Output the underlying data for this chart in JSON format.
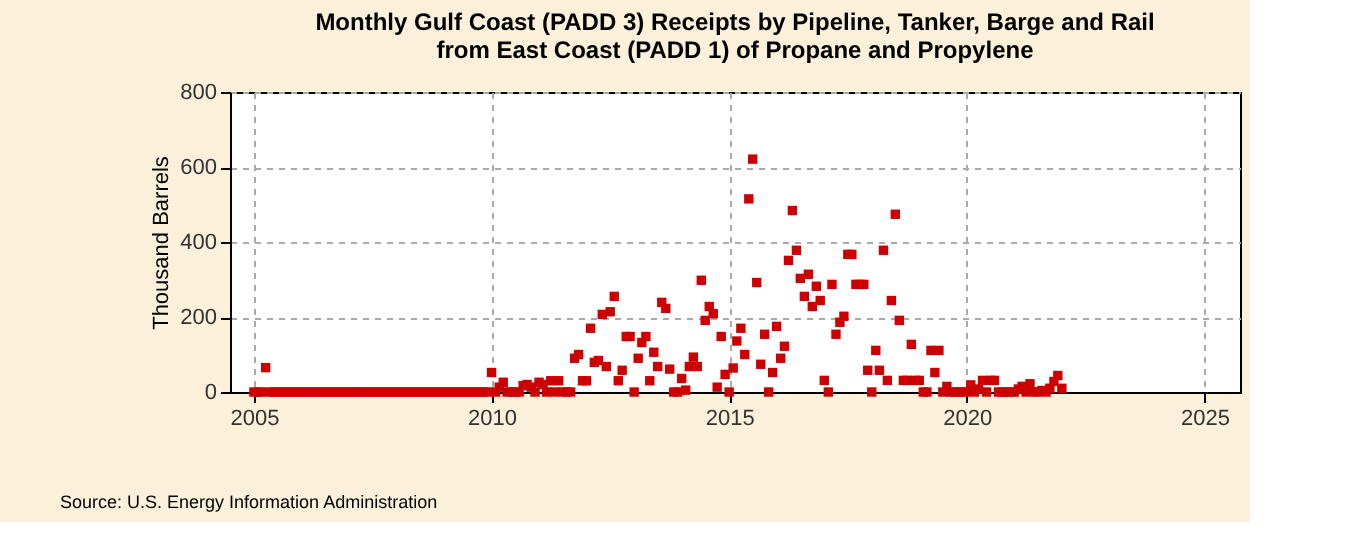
{
  "chart_data": {
    "type": "scatter",
    "title": "Monthly Gulf Coast (PADD 3) Receipts by Pipeline, Tanker, Barge and Rail from East Coast (PADD 1) of Propane and Propylene",
    "ylabel": "Thousand Barrels",
    "annotations": [
      "Source: U.S. Energy Information Administration"
    ],
    "x": [
      "2005-01",
      "2005-02",
      "2005-03",
      "2005-04",
      "2005-05",
      "2005-06",
      "2005-07",
      "2005-08",
      "2005-09",
      "2005-10",
      "2005-11",
      "2005-12",
      "2006-01",
      "2006-02",
      "2006-03",
      "2006-04",
      "2006-05",
      "2006-06",
      "2006-07",
      "2006-08",
      "2006-09",
      "2006-10",
      "2006-11",
      "2006-12",
      "2007-01",
      "2007-02",
      "2007-03",
      "2007-04",
      "2007-05",
      "2007-06",
      "2007-07",
      "2007-08",
      "2007-09",
      "2007-10",
      "2007-11",
      "2007-12",
      "2008-01",
      "2008-02",
      "2008-03",
      "2008-04",
      "2008-05",
      "2008-06",
      "2008-07",
      "2008-08",
      "2008-09",
      "2008-10",
      "2008-11",
      "2008-12",
      "2009-01",
      "2009-02",
      "2009-03",
      "2009-04",
      "2009-05",
      "2009-06",
      "2009-07",
      "2009-08",
      "2009-09",
      "2009-10",
      "2009-11",
      "2009-12",
      "2010-01",
      "2010-02",
      "2010-03",
      "2010-04",
      "2010-05",
      "2010-06",
      "2010-07",
      "2010-08",
      "2010-09",
      "2010-10",
      "2010-11",
      "2010-12",
      "2011-01",
      "2011-02",
      "2011-03",
      "2011-04",
      "2011-05",
      "2011-06",
      "2011-07",
      "2011-08",
      "2011-09",
      "2011-10",
      "2011-11",
      "2011-12",
      "2012-01",
      "2012-02",
      "2012-03",
      "2012-04",
      "2012-05",
      "2012-06",
      "2012-07",
      "2012-08",
      "2012-09",
      "2012-10",
      "2012-11",
      "2012-12",
      "2013-01",
      "2013-02",
      "2013-03",
      "2013-04",
      "2013-05",
      "2013-06",
      "2013-07",
      "2013-08",
      "2013-09",
      "2013-10",
      "2013-11",
      "2013-12",
      "2014-01",
      "2014-02",
      "2014-03",
      "2014-04",
      "2014-05",
      "2014-06",
      "2014-07",
      "2014-08",
      "2014-09",
      "2014-10",
      "2014-11",
      "2014-12",
      "2015-01",
      "2015-02",
      "2015-03",
      "2015-04",
      "2015-05",
      "2015-06",
      "2015-07",
      "2015-08",
      "2015-09",
      "2015-10",
      "2015-11",
      "2015-12",
      "2016-01",
      "2016-02",
      "2016-03",
      "2016-04",
      "2016-05",
      "2016-06",
      "2016-07",
      "2016-08",
      "2016-09",
      "2016-10",
      "2016-11",
      "2016-12",
      "2017-01",
      "2017-02",
      "2017-03",
      "2017-04",
      "2017-05",
      "2017-06",
      "2017-07",
      "2017-08",
      "2017-09",
      "2017-10",
      "2017-11",
      "2017-12",
      "2018-01",
      "2018-02",
      "2018-03",
      "2018-04",
      "2018-05",
      "2018-06",
      "2018-07",
      "2018-08",
      "2018-09",
      "2018-10",
      "2018-11",
      "2018-12",
      "2019-01",
      "2019-02",
      "2019-03",
      "2019-04",
      "2019-05",
      "2019-06",
      "2019-07",
      "2019-08",
      "2019-09",
      "2019-10",
      "2019-11",
      "2019-12",
      "2020-01",
      "2020-02",
      "2020-03",
      "2020-04",
      "2020-05",
      "2020-06",
      "2020-07",
      "2020-08",
      "2020-09",
      "2020-10",
      "2020-11",
      "2020-12",
      "2021-01",
      "2021-02",
      "2021-03",
      "2021-04",
      "2021-05",
      "2021-06",
      "2021-07",
      "2021-08",
      "2021-09",
      "2021-10",
      "2021-11",
      "2021-12",
      "2022-01"
    ],
    "series": [
      {
        "color": "#cc0000",
        "values": [
          0,
          0,
          0,
          65,
          0,
          0,
          0,
          0,
          0,
          0,
          0,
          0,
          0,
          0,
          0,
          0,
          0,
          0,
          0,
          0,
          0,
          0,
          0,
          0,
          0,
          0,
          0,
          0,
          0,
          0,
          0,
          0,
          0,
          0,
          0,
          0,
          0,
          0,
          0,
          0,
          0,
          0,
          0,
          0,
          0,
          0,
          0,
          0,
          0,
          0,
          0,
          0,
          0,
          0,
          0,
          0,
          0,
          0,
          0,
          0,
          52,
          0,
          13,
          26,
          0,
          0,
          0,
          0,
          17,
          20,
          13,
          0,
          26,
          20,
          0,
          30,
          0,
          30,
          0,
          0,
          0,
          90,
          100,
          30,
          30,
          170,
          79,
          84,
          207,
          68,
          214,
          255,
          30,
          58,
          148,
          148,
          0,
          90,
          132,
          148,
          30,
          106,
          68,
          239,
          223,
          61,
          0,
          0,
          36,
          5,
          68,
          93,
          68,
          298,
          191,
          228,
          209,
          13,
          148,
          47,
          0,
          64,
          136,
          170,
          100,
          515,
          621,
          292,
          74,
          154,
          0,
          52,
          175,
          90,
          122,
          351,
          484,
          378,
          303,
          255,
          314,
          228,
          282,
          244,
          31,
          0,
          287,
          154,
          186,
          202,
          367,
          367,
          287,
          287,
          287,
          58,
          0,
          111,
          58,
          378,
          31,
          244,
          474,
          191,
          31,
          31,
          127,
          31,
          31,
          0,
          0,
          111,
          52,
          111,
          0,
          15,
          0,
          0,
          0,
          0,
          0,
          19,
          0,
          8,
          31,
          0,
          31,
          31,
          0,
          0,
          0,
          0,
          0,
          8,
          15,
          0,
          22,
          0,
          0,
          4,
          0,
          10,
          28,
          44,
          10
        ]
      }
    ],
    "xlim": [
      "2004-07",
      "2025-10"
    ],
    "xticks": [
      "2005",
      "2010",
      "2015",
      "2020",
      "2025"
    ],
    "ylim": [
      0,
      800
    ],
    "yticks": [
      0,
      200,
      400,
      600,
      800
    ],
    "grid": true,
    "marker": "square"
  }
}
